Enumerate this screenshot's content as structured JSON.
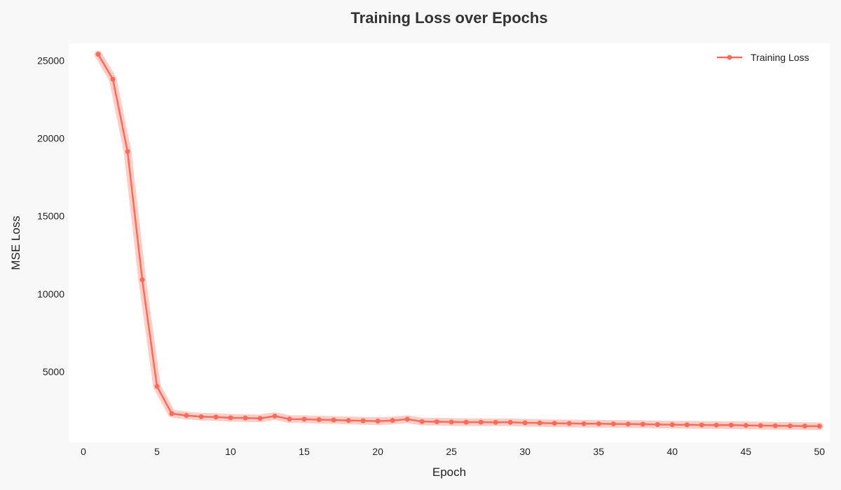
{
  "chart_data": {
    "type": "line",
    "title": "Training Loss over Epochs",
    "xlabel": "Epoch",
    "ylabel": "MSE Loss",
    "xlim": [
      -1,
      50.7
    ],
    "ylim": [
      450,
      26100
    ],
    "xticks": [
      0,
      5,
      10,
      15,
      20,
      25,
      30,
      35,
      40,
      45,
      50
    ],
    "yticks": [
      5000,
      10000,
      15000,
      20000,
      25000
    ],
    "grid": false,
    "legend_position": "top-right",
    "series": [
      {
        "name": "Training Loss",
        "color": "#ff6b5b",
        "band_color": "#ffc5bd",
        "x": [
          1,
          2,
          3,
          4,
          5,
          6,
          7,
          8,
          9,
          10,
          11,
          12,
          13,
          14,
          15,
          16,
          17,
          18,
          19,
          20,
          21,
          22,
          23,
          24,
          25,
          26,
          27,
          28,
          29,
          30,
          31,
          32,
          33,
          34,
          35,
          36,
          37,
          38,
          39,
          40,
          41,
          42,
          43,
          44,
          45,
          46,
          47,
          48,
          49,
          50
        ],
        "y": [
          25400,
          23800,
          19150,
          10900,
          4050,
          2300,
          2180,
          2100,
          2080,
          2030,
          2020,
          1990,
          2140,
          1950,
          1940,
          1910,
          1890,
          1860,
          1840,
          1820,
          1860,
          1940,
          1790,
          1780,
          1760,
          1750,
          1750,
          1740,
          1740,
          1710,
          1700,
          1680,
          1670,
          1650,
          1650,
          1640,
          1630,
          1620,
          1600,
          1590,
          1580,
          1570,
          1560,
          1560,
          1540,
          1530,
          1520,
          1510,
          1500,
          1490
        ]
      }
    ]
  }
}
